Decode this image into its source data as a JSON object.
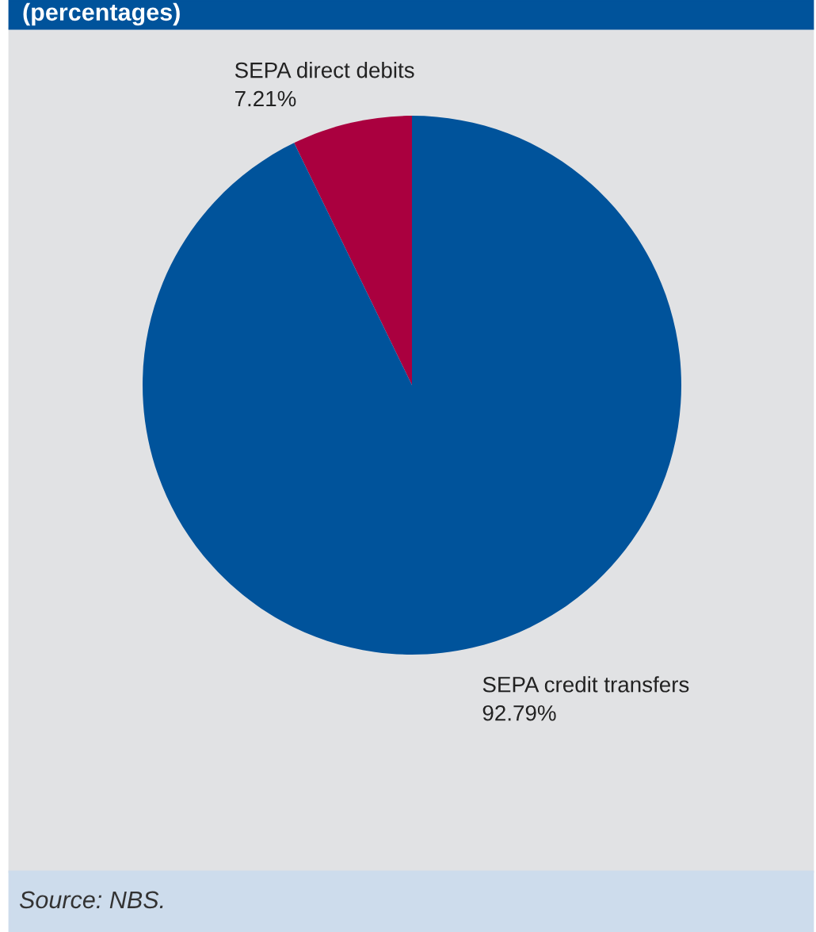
{
  "chart_data": {
    "type": "pie",
    "title": "(percentages)",
    "categories": [
      "SEPA direct debits",
      "SEPA credit transfers"
    ],
    "values": [
      7.21,
      92.79
    ],
    "colors": [
      "#aa003f",
      "#00539b"
    ],
    "value_labels": [
      "7.21%",
      "92.79%"
    ],
    "annotations": [
      "Source: NBS."
    ]
  }
}
